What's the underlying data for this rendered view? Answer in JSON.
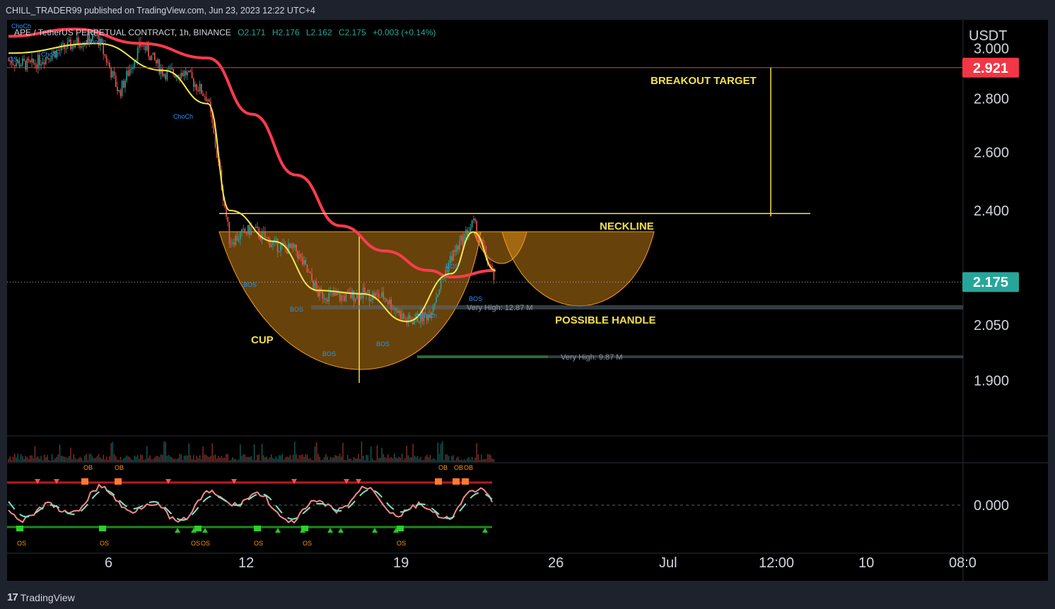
{
  "header": {
    "publisher": "CHILL_TRADER99 published on TradingView.com, Jun 23, 2023 12:22 UTC+4"
  },
  "legend": {
    "symbol": "APE / TetherUS PERPETUAL CONTRACT, 1h, BINANCE",
    "open": "O2.171",
    "high": "H2.176",
    "low": "L2.162",
    "close": "C2.175",
    "change": "+0.003 (+0.14%)"
  },
  "colors": {
    "background": "#000000",
    "up": "#26a69a",
    "down": "#ef5350",
    "ema": "#ff3b4e",
    "fast_ma": "#f5e94a",
    "pattern_fill": "#f59e1b",
    "annotation": "#f3e048",
    "price_badge": "#26a69a",
    "target_badge": "#f23645"
  },
  "chart_data": {
    "type": "line",
    "title": "",
    "xlabel": "",
    "ylabel": "USDT",
    "ylim": [
      1.76,
      3.12
    ],
    "scale": "log",
    "x_ticks": [
      "6",
      "12",
      "19",
      "26",
      "Jul",
      "12:00",
      "10",
      "08:0"
    ],
    "y_ticks": [
      "3.000",
      "2.800",
      "2.600",
      "2.400",
      "2.050",
      "1.900"
    ],
    "y_axis_title": "USDT",
    "last_price": "2.175",
    "target_price": "2.921",
    "price_path": [
      {
        "x": "Jun 1",
        "y": 2.95
      },
      {
        "x": "Jun 2",
        "y": 2.93
      },
      {
        "x": "Jun 3",
        "y": 2.98
      },
      {
        "x": "Jun 4",
        "y": 3.02
      },
      {
        "x": "Jun 5",
        "y": 3.05
      },
      {
        "x": "Jun 6",
        "y": 2.82
      },
      {
        "x": "Jun 7",
        "y": 3.02
      },
      {
        "x": "Jun 8",
        "y": 2.9
      },
      {
        "x": "Jun 9",
        "y": 2.9
      },
      {
        "x": "Jun 10",
        "y": 2.8
      },
      {
        "x": "Jun 11",
        "y": 2.3
      },
      {
        "x": "Jun 12",
        "y": 2.34
      },
      {
        "x": "Jun 13",
        "y": 2.29
      },
      {
        "x": "Jun 14",
        "y": 2.27
      },
      {
        "x": "Jun 15",
        "y": 2.14
      },
      {
        "x": "Jun 16",
        "y": 2.13
      },
      {
        "x": "Jun 17",
        "y": 2.14
      },
      {
        "x": "Jun 18",
        "y": 2.13
      },
      {
        "x": "Jun 19",
        "y": 2.06
      },
      {
        "x": "Jun 20",
        "y": 2.08
      },
      {
        "x": "Jun 21",
        "y": 2.25
      },
      {
        "x": "Jun 22",
        "y": 2.36
      },
      {
        "x": "Jun 23",
        "y": 2.175
      }
    ],
    "series": [
      {
        "values": [
          {
            "x": "Jun 1",
            "y": 3.05
          },
          {
            "x": "Jun 4",
            "y": 3.08
          },
          {
            "x": "Jun 7",
            "y": 3.02
          },
          {
            "x": "Jun 10",
            "y": 2.96
          },
          {
            "x": "Jun 12",
            "y": 2.74
          },
          {
            "x": "Jun 14",
            "y": 2.52
          },
          {
            "x": "Jun 16",
            "y": 2.35
          },
          {
            "x": "Jun 18",
            "y": 2.27
          },
          {
            "x": "Jun 20",
            "y": 2.21
          },
          {
            "x": "Jun 21",
            "y": 2.19
          },
          {
            "x": "Jun 23",
            "y": 2.21
          }
        ]
      },
      {
        "values": [
          {
            "x": "Jun 1",
            "y": 2.98
          },
          {
            "x": "Jun 5",
            "y": 3.02
          },
          {
            "x": "Jun 8",
            "y": 2.91
          },
          {
            "x": "Jun 10",
            "y": 2.78
          },
          {
            "x": "Jun 11",
            "y": 2.4
          },
          {
            "x": "Jun 13",
            "y": 2.3
          },
          {
            "x": "Jun 15",
            "y": 2.15
          },
          {
            "x": "Jun 17",
            "y": 2.14
          },
          {
            "x": "Jun 19",
            "y": 2.06
          },
          {
            "x": "Jun 21",
            "y": 2.2
          },
          {
            "x": "Jun 22",
            "y": 2.33
          },
          {
            "x": "Jun 23",
            "y": 2.21
          }
        ]
      }
    ],
    "levels": [
      {
        "label": "NECKLINE",
        "y": 2.39
      },
      {
        "label": "BREAKOUT TARGET",
        "y": 2.921
      }
    ],
    "annotations": [
      {
        "text": "BREAKOUT TARGET"
      },
      {
        "text": "NECKLINE"
      },
      {
        "text": "CUP"
      },
      {
        "text": "POSSIBLE HANDLE"
      }
    ],
    "volume_profile": [
      {
        "label": "Very High: 12.87 M",
        "y": 2.16
      },
      {
        "label": "Very High: 9.87 M",
        "y": 2.02
      }
    ],
    "oscillator": {
      "axis_label": "0.000",
      "ob_labels": [
        "OB",
        "OB",
        "OB",
        "OB",
        "OB"
      ],
      "os_labels": [
        "OS",
        "OS",
        "OS",
        "OS",
        "OS",
        "OS",
        "OS"
      ]
    },
    "structure_labels": [
      "ChoCh",
      "ChoCh",
      "ChoCh",
      "ChoCh",
      "ChoCh",
      "BOS",
      "BOS",
      "BOS",
      "BOS",
      "BOS",
      "BOS",
      "OS"
    ]
  },
  "footer": {
    "brand": "TradingView"
  }
}
